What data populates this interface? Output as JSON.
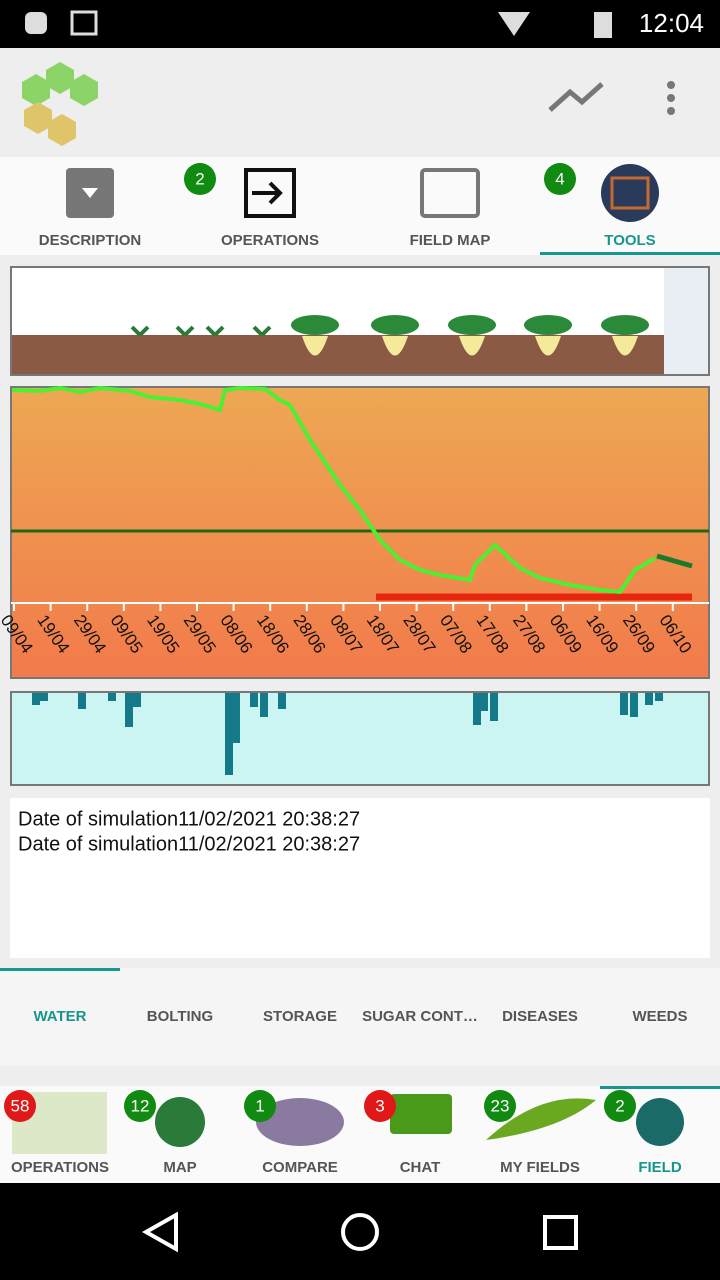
{
  "status_bar": {
    "time": "12:04"
  },
  "top_tabs": [
    {
      "label": "DESCRIPTION"
    },
    {
      "label": "OPERATIONS",
      "badge": 2
    },
    {
      "label": "FIELD MAP"
    },
    {
      "label": "TOOLS",
      "badge": 4
    }
  ],
  "chart": {
    "x_labels": [
      "09/04",
      "19/04",
      "29/04",
      "09/05",
      "19/05",
      "29/05",
      "08/06",
      "18/06",
      "28/06",
      "08/07",
      "18/07",
      "28/07",
      "07/08",
      "17/08",
      "27/08",
      "06/09",
      "16/09",
      "26/09",
      "06/10"
    ]
  },
  "log": [
    "Date of simulation11/02/2021 20:38:27",
    "Date of simulation11/02/2021 20:38:27"
  ],
  "sub_tabs": [
    "WATER",
    "BOLTING",
    "STORAGE",
    "SUGAR CONT…",
    "DISEASES",
    "WEEDS"
  ],
  "bottom_nav": [
    {
      "label": "OPERATIONS",
      "badge": 58
    },
    {
      "label": "MAP",
      "badge": 12
    },
    {
      "label": "COMPARE",
      "badge": 1
    },
    {
      "label": "CHAT",
      "badge": 3
    },
    {
      "label": "MY FIELDS",
      "badge": 23
    },
    {
      "label": "FIELD",
      "badge": 2
    }
  ]
}
